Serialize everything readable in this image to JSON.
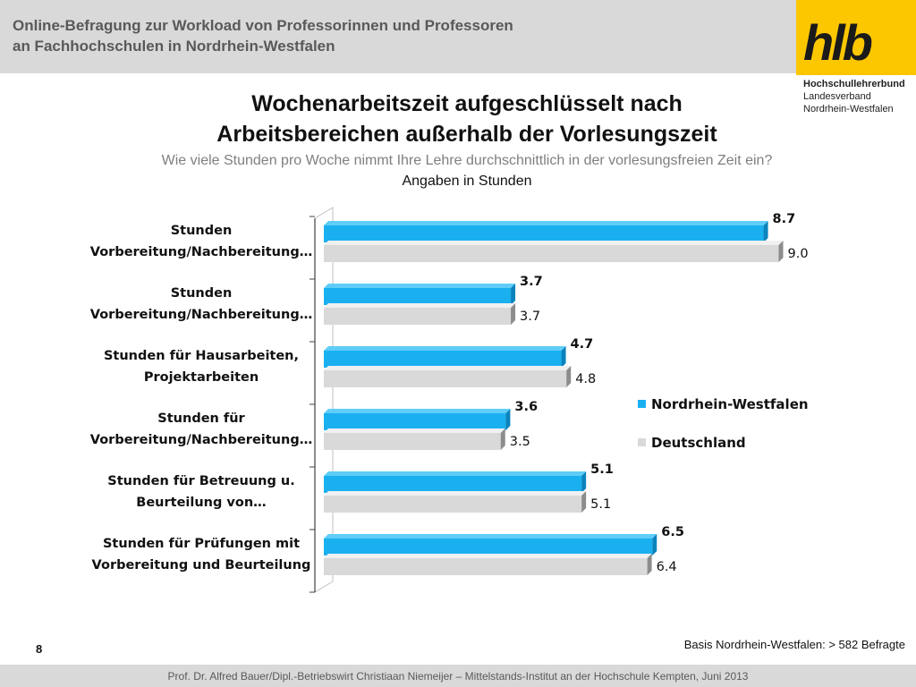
{
  "header": {
    "line1": "Online-Befragung  zur  Workload von Professorinnen und Professoren",
    "line2": "an Fachhochschulen in Nordrhein-Westfalen"
  },
  "logo": {
    "text": "hlb",
    "org_line1": "Hochschullehrerbund",
    "org_line2": "Landesverband",
    "org_line3": "Nordrhein-Westfalen"
  },
  "slide": {
    "title_line1": "Wochenarbeitszeit aufgeschlüsselt nach",
    "title_line2": "Arbeitsbereichen außerhalb der Vorlesungszeit",
    "question": "Wie viele Stunden pro Woche nimmt Ihre Lehre durchschnittlich in der vorlesungsfreien Zeit ein?",
    "unit_note": "Angaben in Stunden"
  },
  "chart_data": {
    "type": "bar",
    "orientation": "horizontal",
    "categories": [
      [
        "Stunden",
        "Vorbereitung/Nachbereitung…"
      ],
      [
        "Stunden",
        "Vorbereitung/Nachbereitung…"
      ],
      [
        "Stunden für Hausarbeiten,",
        "Projektarbeiten"
      ],
      [
        "Stunden für",
        "Vorbereitung/Nachbereitung…"
      ],
      [
        "Stunden für Betreuung u.",
        "Beurteilung von…"
      ],
      [
        "Stunden für Prüfungen mit",
        "Vorbereitung und Beurteilung"
      ]
    ],
    "series": [
      {
        "name": "Nordrhein-Westfalen",
        "values": [
          8.7,
          3.7,
          4.7,
          3.6,
          5.1,
          6.5
        ],
        "labels": [
          "8.7",
          "3.7",
          "4.7",
          "3.6",
          "5.1",
          "6.5"
        ],
        "color": "#1ab0f0"
      },
      {
        "name": "Deutschland",
        "values": [
          9.0,
          3.7,
          4.8,
          3.5,
          5.1,
          6.4
        ],
        "labels": [
          "9.0",
          "3.7",
          "4.8",
          "3.5",
          "5.1",
          "6.4"
        ],
        "color": "#d9d9d9"
      }
    ],
    "xlim": [
      0,
      9
    ],
    "legend": "right",
    "grid": false
  },
  "footer": {
    "page_number": "8",
    "basis": "Basis Nordrhein-Westfalen: > 582 Befragte",
    "credit": "Prof. Dr. Alfred Bauer/Dipl.-Betriebswirt Christiaan Niemeijer – Mittelstands-Institut an der Hochschule Kempten, Juni 2013"
  }
}
